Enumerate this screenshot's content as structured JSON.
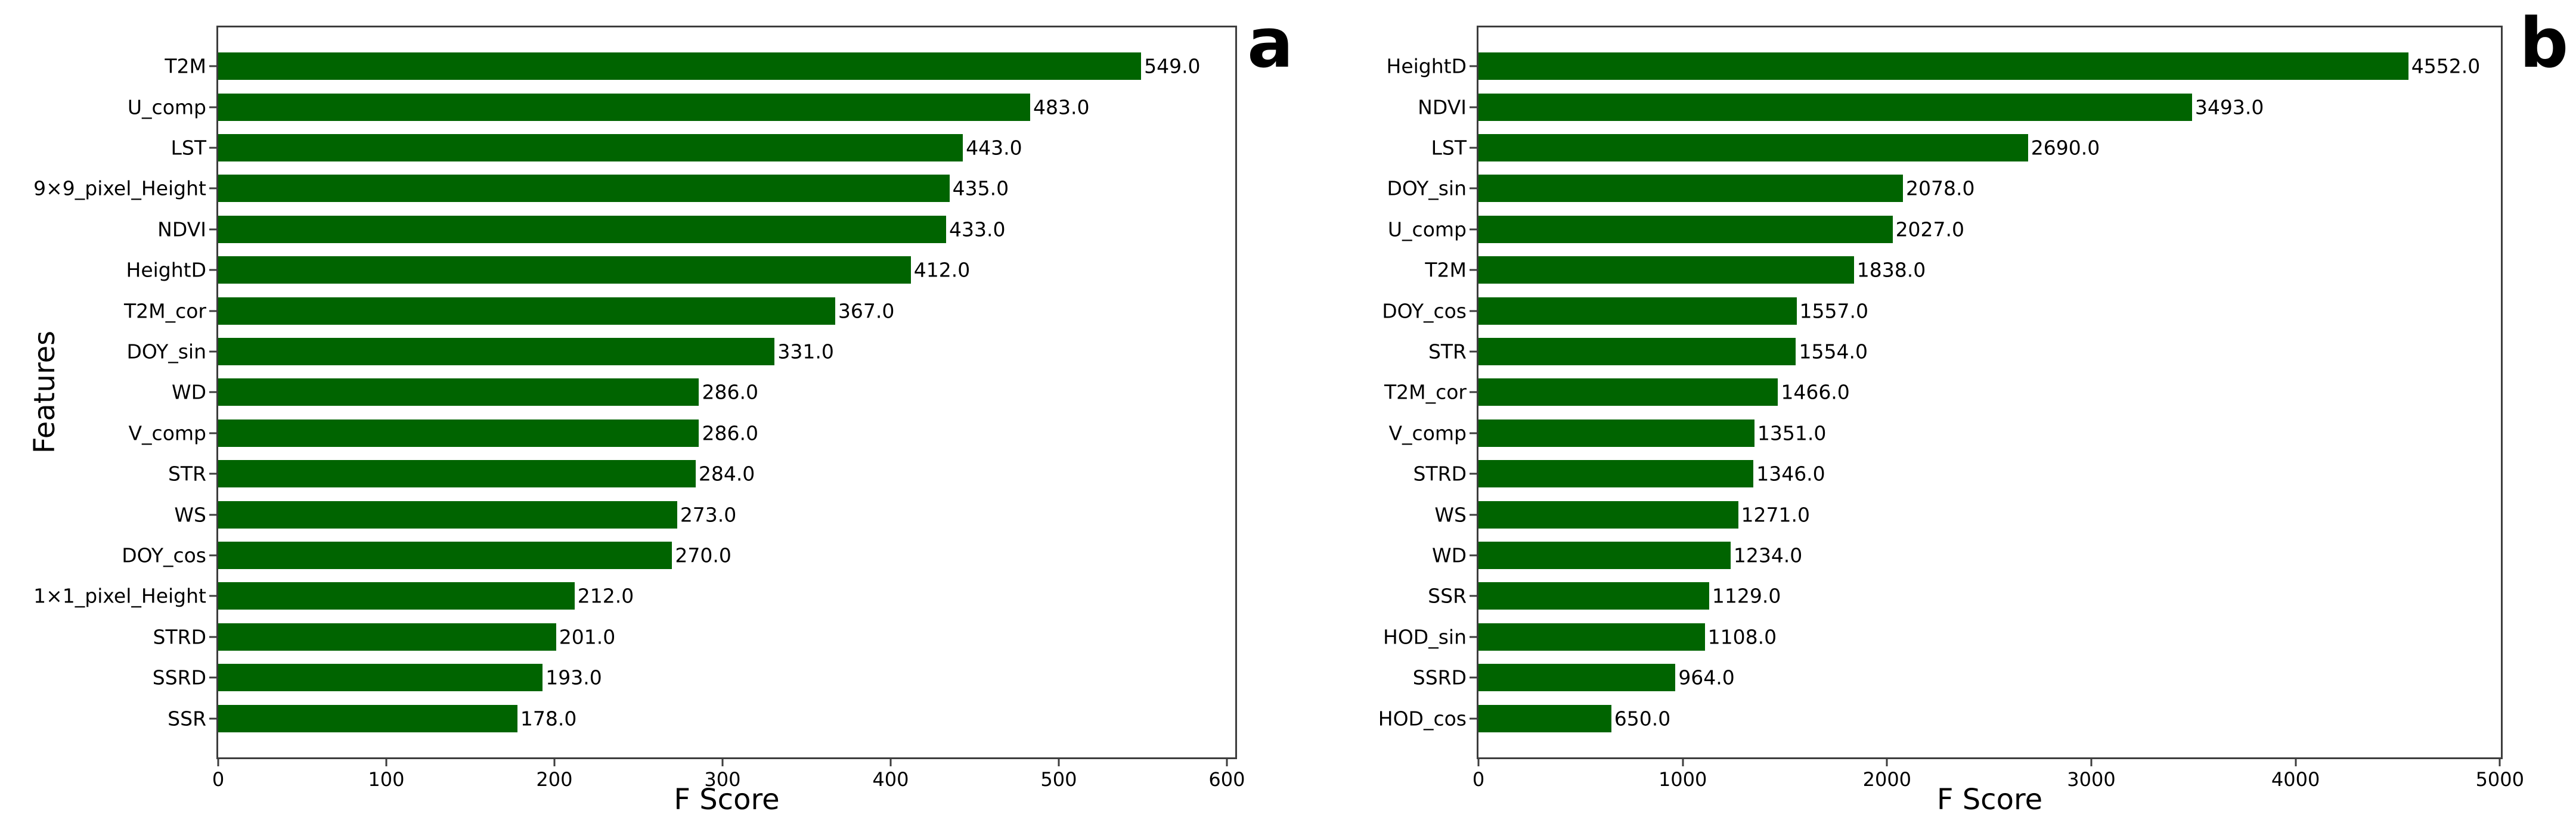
{
  "figure": {
    "background": "#ffffff",
    "axis_color": "#3d3d3d",
    "text_color": "#000000"
  },
  "chart_data": [
    {
      "id": "a",
      "type": "bar",
      "orientation": "horizontal",
      "panel_label": "a",
      "xlabel": "F Score",
      "ylabel": "Features",
      "bar_color": "#006400",
      "grid": false,
      "legend": false,
      "xlim": [
        0,
        605
      ],
      "x_ticks": [
        0,
        100,
        200,
        300,
        400,
        500,
        600
      ],
      "categories": [
        "T2M",
        "U_comp",
        "LST",
        "9×9_pixel_Height",
        "NDVI",
        "HeightD",
        "T2M_cor",
        "DOY_sin",
        "WD",
        "V_comp",
        "STR",
        "WS",
        "DOY_cos",
        "1×1_pixel_Height",
        "STRD",
        "SSRD",
        "SSR"
      ],
      "values": [
        549.0,
        483.0,
        443.0,
        435.0,
        433.0,
        412.0,
        367.0,
        331.0,
        286.0,
        286.0,
        284.0,
        273.0,
        270.0,
        212.0,
        201.0,
        193.0,
        178.0
      ],
      "value_labels": [
        "549.0",
        "483.0",
        "443.0",
        "435.0",
        "433.0",
        "412.0",
        "367.0",
        "331.0",
        "286.0",
        "286.0",
        "284.0",
        "273.0",
        "270.0",
        "212.0",
        "201.0",
        "193.0",
        "178.0"
      ]
    },
    {
      "id": "b",
      "type": "bar",
      "orientation": "horizontal",
      "panel_label": "b",
      "xlabel": "F Score",
      "ylabel": "",
      "bar_color": "#006400",
      "grid": false,
      "legend": false,
      "xlim": [
        0,
        5005
      ],
      "x_ticks": [
        0,
        1000,
        2000,
        3000,
        4000,
        5000
      ],
      "categories": [
        "HeightD",
        "NDVI",
        "LST",
        "DOY_sin",
        "U_comp",
        "T2M",
        "DOY_cos",
        "STR",
        "T2M_cor",
        "V_comp",
        "STRD",
        "WS",
        "WD",
        "SSR",
        "HOD_sin",
        "SSRD",
        "HOD_cos"
      ],
      "values": [
        4552.0,
        3493.0,
        2690.0,
        2078.0,
        2027.0,
        1838.0,
        1557.0,
        1554.0,
        1466.0,
        1351.0,
        1346.0,
        1271.0,
        1234.0,
        1129.0,
        1108.0,
        964.0,
        650.0
      ],
      "value_labels": [
        "4552.0",
        "3493.0",
        "2690.0",
        "2078.0",
        "2027.0",
        "1838.0",
        "1557.0",
        "1554.0",
        "1466.0",
        "1351.0",
        "1346.0",
        "1271.0",
        "1234.0",
        "1129.0",
        "1108.0",
        "964.0",
        "650.0"
      ]
    }
  ]
}
